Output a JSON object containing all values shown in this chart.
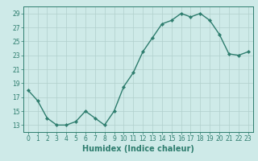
{
  "x": [
    0,
    1,
    2,
    3,
    4,
    5,
    6,
    7,
    8,
    9,
    10,
    11,
    12,
    13,
    14,
    15,
    16,
    17,
    18,
    19,
    20,
    21,
    22,
    23
  ],
  "y": [
    18,
    16.5,
    14,
    13,
    13,
    13.5,
    15,
    14,
    13,
    15,
    18.5,
    20.5,
    23.5,
    25.5,
    27.5,
    28,
    29,
    28.5,
    29,
    28,
    26,
    23.2,
    23,
    23.5
  ],
  "line_color": "#2e7d6e",
  "marker_color": "#2e7d6e",
  "bg_color": "#ceeae8",
  "grid_color": "#b0d0cc",
  "xlabel": "Humidex (Indice chaleur)",
  "xlim": [
    -0.5,
    23.5
  ],
  "ylim": [
    12,
    30
  ],
  "yticks": [
    13,
    15,
    17,
    19,
    21,
    23,
    25,
    27,
    29
  ],
  "xticks": [
    0,
    1,
    2,
    3,
    4,
    5,
    6,
    7,
    8,
    9,
    10,
    11,
    12,
    13,
    14,
    15,
    16,
    17,
    18,
    19,
    20,
    21,
    22,
    23
  ],
  "tick_fontsize": 5.5,
  "xlabel_fontsize": 7,
  "marker_size": 2.2,
  "line_width": 1.0
}
